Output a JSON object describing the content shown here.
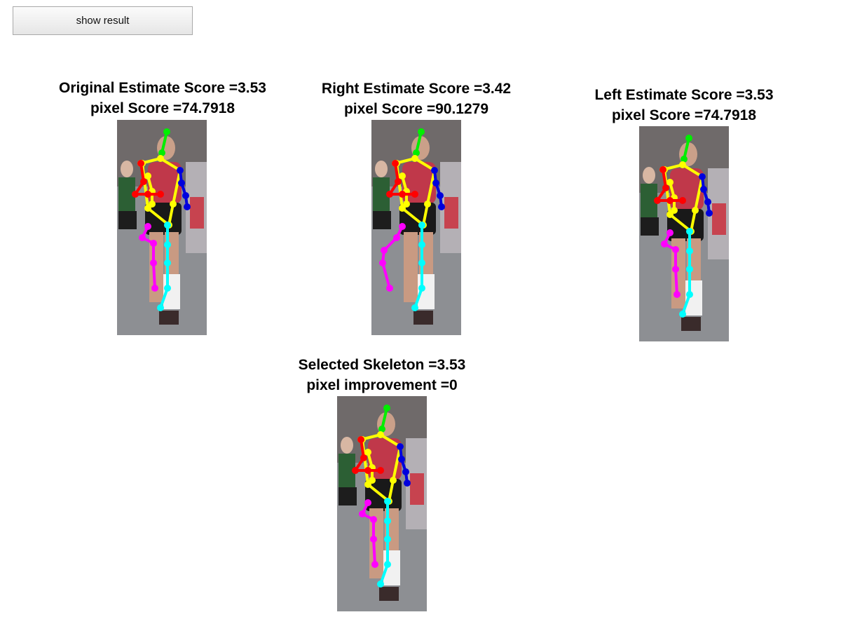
{
  "toolbar": {
    "show_result_label": "show result"
  },
  "panels": [
    {
      "id": "original",
      "title": "Original Estimate Score =3.53",
      "subtitle": "pixel Score =74.7918"
    },
    {
      "id": "right",
      "title": "Right Estimate Score =3.42",
      "subtitle": "pixel Score =90.1279"
    },
    {
      "id": "left",
      "title": "Left Estimate Score =3.53",
      "subtitle": "pixel Score =74.7918"
    },
    {
      "id": "selected",
      "title": "Selected Skeleton =3.53",
      "subtitle": "pixel improvement =0"
    }
  ],
  "colors": {
    "head": "#00ee00",
    "torso": "#ffff00",
    "right_arm": "#ff0000",
    "left_arm": "#0000dd",
    "right_leg": "#ff00ff",
    "left_leg": "#00ffff"
  }
}
